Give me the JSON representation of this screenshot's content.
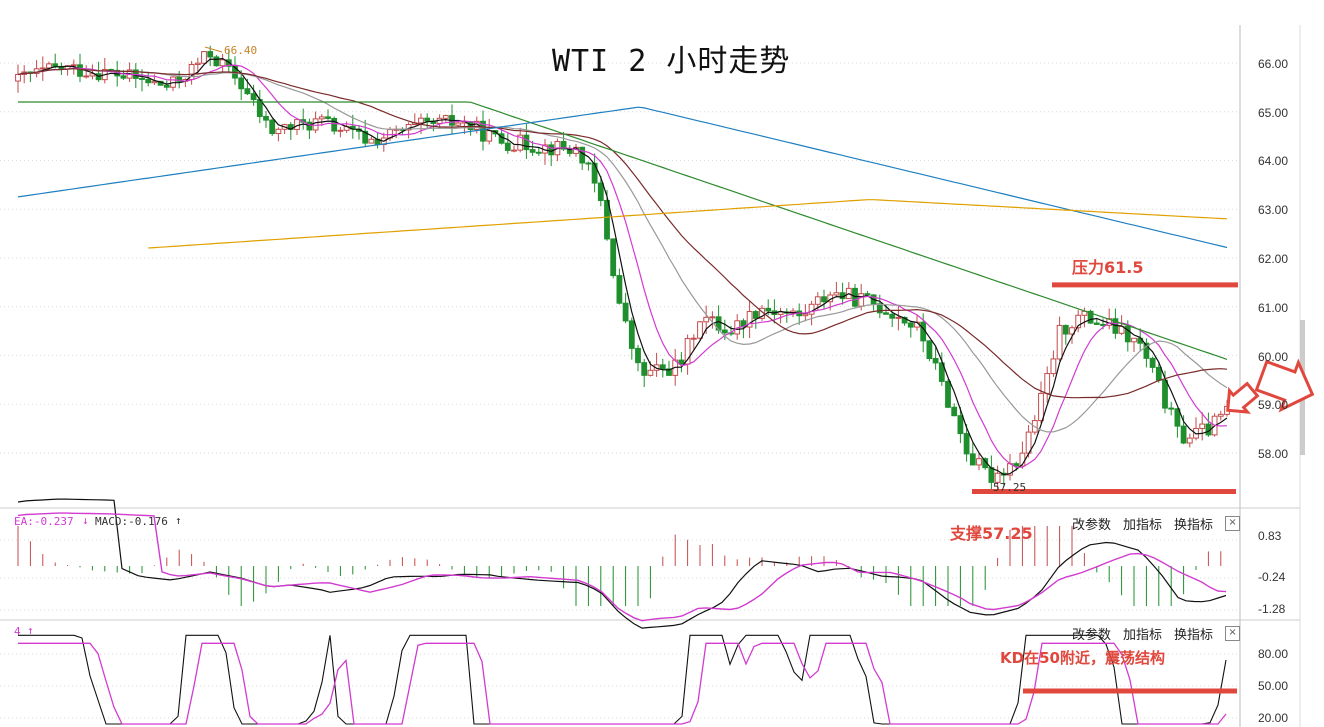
{
  "chart_data": {
    "type": "candlestick",
    "title": "WTI 2 小时走势",
    "y_ticks": [
      "66.00",
      "65.00",
      "64.00",
      "63.00",
      "62.00",
      "61.00",
      "60.00",
      "59.00",
      "58.00"
    ],
    "ylim": [
      57.0,
      66.7
    ],
    "high_label": "66.40",
    "low_label": "57.25",
    "annotations": {
      "resistance": "压力61.5",
      "support": "支撑57.25",
      "kd_note": "KD在50附近，震荡结构"
    },
    "levels": {
      "resistance": 61.45,
      "support": 57.25
    },
    "ma_colors": [
      "#111111",
      "#d23bd0",
      "#999999",
      "#7a2a2a",
      "#2e8b2e",
      "#1f7fbf",
      "#e0a000"
    ],
    "macd": {
      "label_dea": "EA:-0.237",
      "label_macd": "MACD:-0.176",
      "y_ticks": [
        "0.83",
        "-0.24",
        "-1.28"
      ]
    },
    "kd": {
      "label": "4",
      "y_ticks": [
        "80.00",
        "50.00",
        "20.00"
      ],
      "level": 50
    }
  },
  "toolbar": {
    "params": "改参数",
    "add_indicator": "加指标",
    "switch_indicator": "换指标",
    "close": "×"
  }
}
